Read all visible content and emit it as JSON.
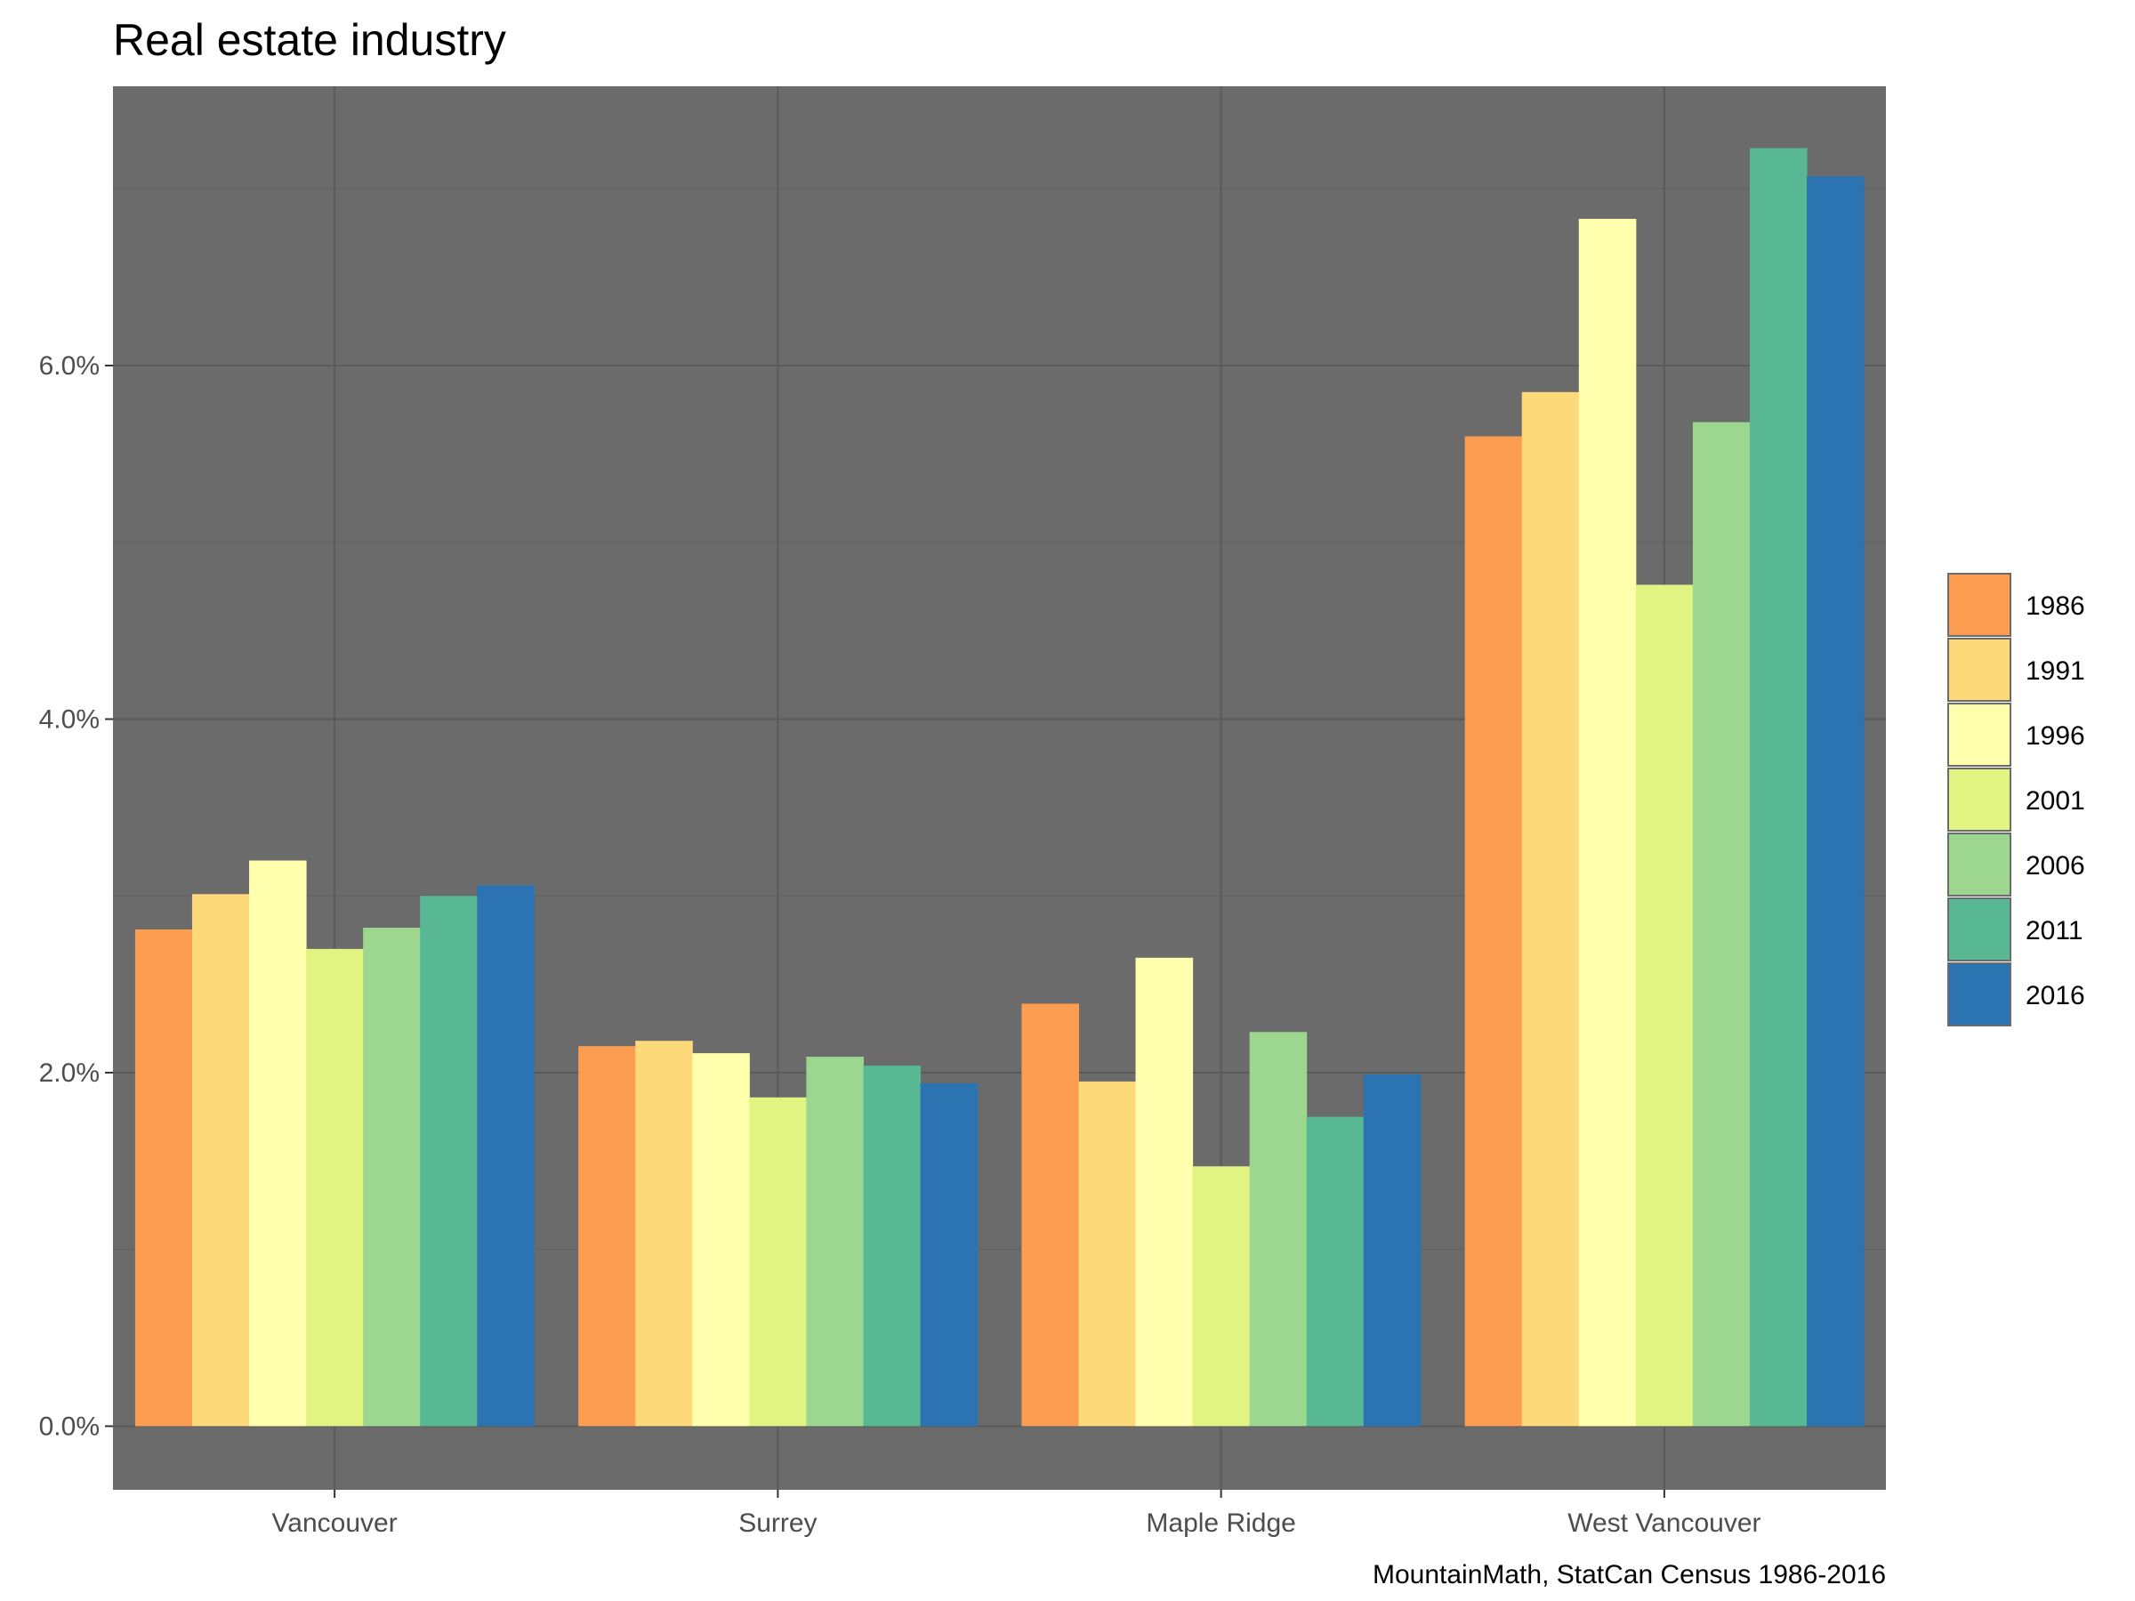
{
  "chart_data": {
    "type": "bar",
    "title": "Real estate industry",
    "caption": "MountainMath, StatCan Census 1986-2016",
    "xlabel": "",
    "ylabel": "",
    "categories": [
      "Vancouver",
      "Surrey",
      "Maple Ridge",
      "West Vancouver"
    ],
    "y_ticks": [
      0,
      2,
      4,
      6
    ],
    "y_tick_labels": [
      "0.0%",
      "2.0%",
      "4.0%",
      "6.0%"
    ],
    "ylim": [
      -0.36,
      7.58
    ],
    "value_unit": "percent",
    "grid": true,
    "legend_position": "right",
    "panel_background": "#6B6B6B",
    "grid_major_color": "#5a5a5a",
    "grid_minor_color": "#636363",
    "series": [
      {
        "name": "1986",
        "color": "#FC9D51",
        "values": [
          2.81,
          2.15,
          2.39,
          5.6
        ]
      },
      {
        "name": "1991",
        "color": "#FDD97A",
        "values": [
          3.01,
          2.18,
          1.95,
          5.85
        ]
      },
      {
        "name": "1996",
        "color": "#FFFFAE",
        "values": [
          3.2,
          2.11,
          2.65,
          6.83
        ]
      },
      {
        "name": "2001",
        "color": "#E1F482",
        "values": [
          2.7,
          1.86,
          1.47,
          4.76
        ]
      },
      {
        "name": "2006",
        "color": "#9CD68F",
        "values": [
          2.82,
          2.09,
          2.23,
          5.68
        ]
      },
      {
        "name": "2011",
        "color": "#58B894",
        "values": [
          3.0,
          2.04,
          1.75,
          7.23
        ]
      },
      {
        "name": "2016",
        "color": "#2C73B1",
        "values": [
          3.06,
          1.94,
          1.99,
          7.07
        ]
      }
    ]
  }
}
